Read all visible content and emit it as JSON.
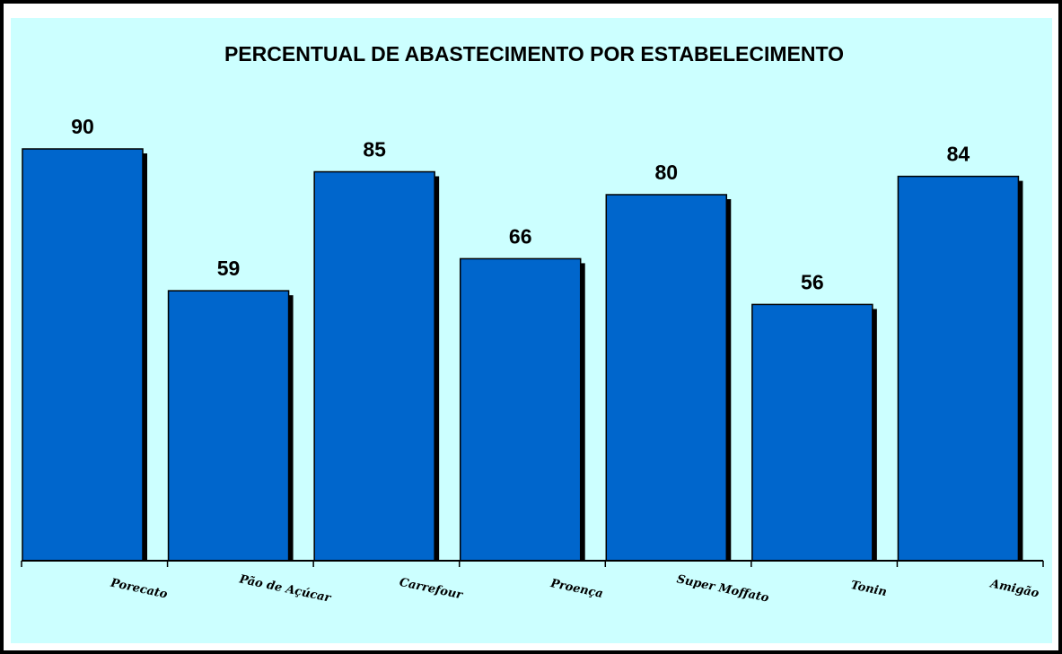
{
  "colors": {
    "outer_background": "#ffffff",
    "frame_border": "#000000",
    "plot_background": "#ccffff",
    "bar_fill": "#0066cc",
    "bar_shadow": "#000000",
    "text": "#000000"
  },
  "chart_data": {
    "type": "bar",
    "title": "PERCENTUAL DE ABASTECIMENTO POR ESTABELECIMENTO",
    "xlabel": "",
    "ylabel": "",
    "categories": [
      "Porecato",
      "Pão de Açúcar",
      "Carrefour",
      "Proença",
      "Super Moffato",
      "Tonin",
      "Amigão"
    ],
    "values": [
      90,
      59,
      85,
      66,
      80,
      56,
      84
    ],
    "value_labels": [
      "90",
      "59",
      "85",
      "66",
      "80",
      "56",
      "84"
    ],
    "ylim": [
      0,
      100
    ],
    "grid": false,
    "legend": "none",
    "data_labels": true
  }
}
